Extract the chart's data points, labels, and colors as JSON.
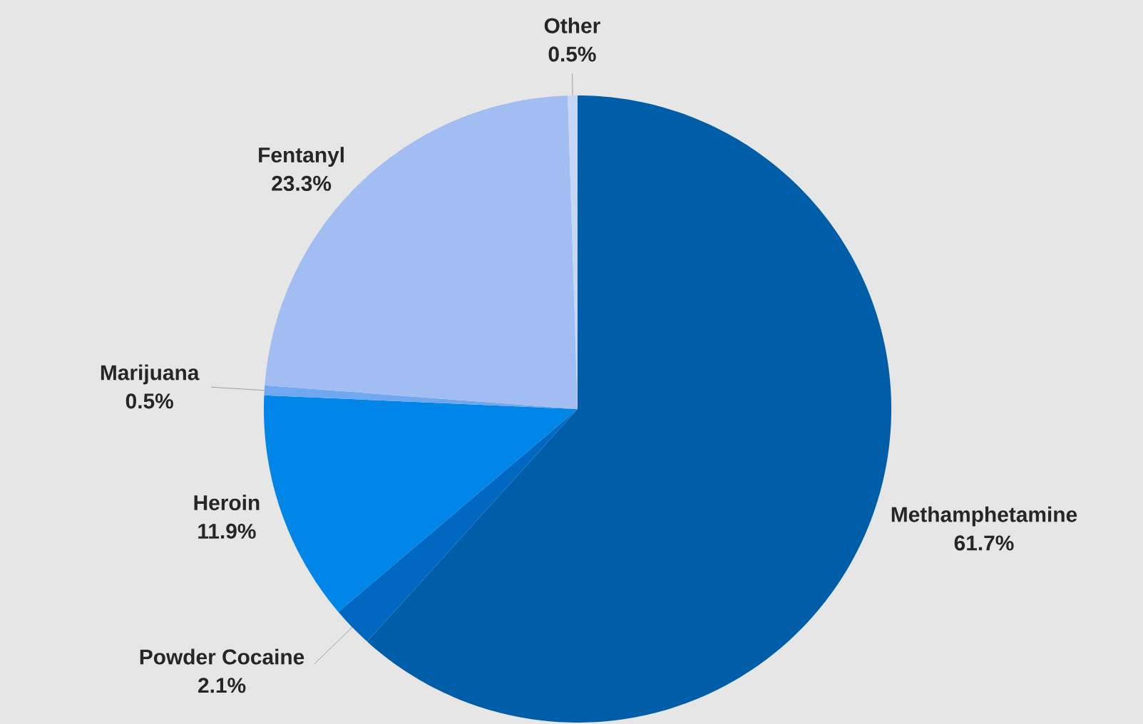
{
  "chart_data": {
    "type": "pie",
    "categories": [
      "Methamphetamine",
      "Powder Cocaine",
      "Heroin",
      "Marijuana",
      "Fentanyl",
      "Other"
    ],
    "values": [
      61.7,
      2.1,
      11.9,
      0.5,
      23.3,
      0.5
    ],
    "value_labels": [
      "61.7%",
      "2.1%",
      "11.9%",
      "0.5%",
      "23.3%",
      "0.5%"
    ],
    "colors": [
      "#005da8",
      "#0068c0",
      "#0085e8",
      "#6fa8f0",
      "#a2bdf2",
      "#c6d6f5"
    ]
  }
}
